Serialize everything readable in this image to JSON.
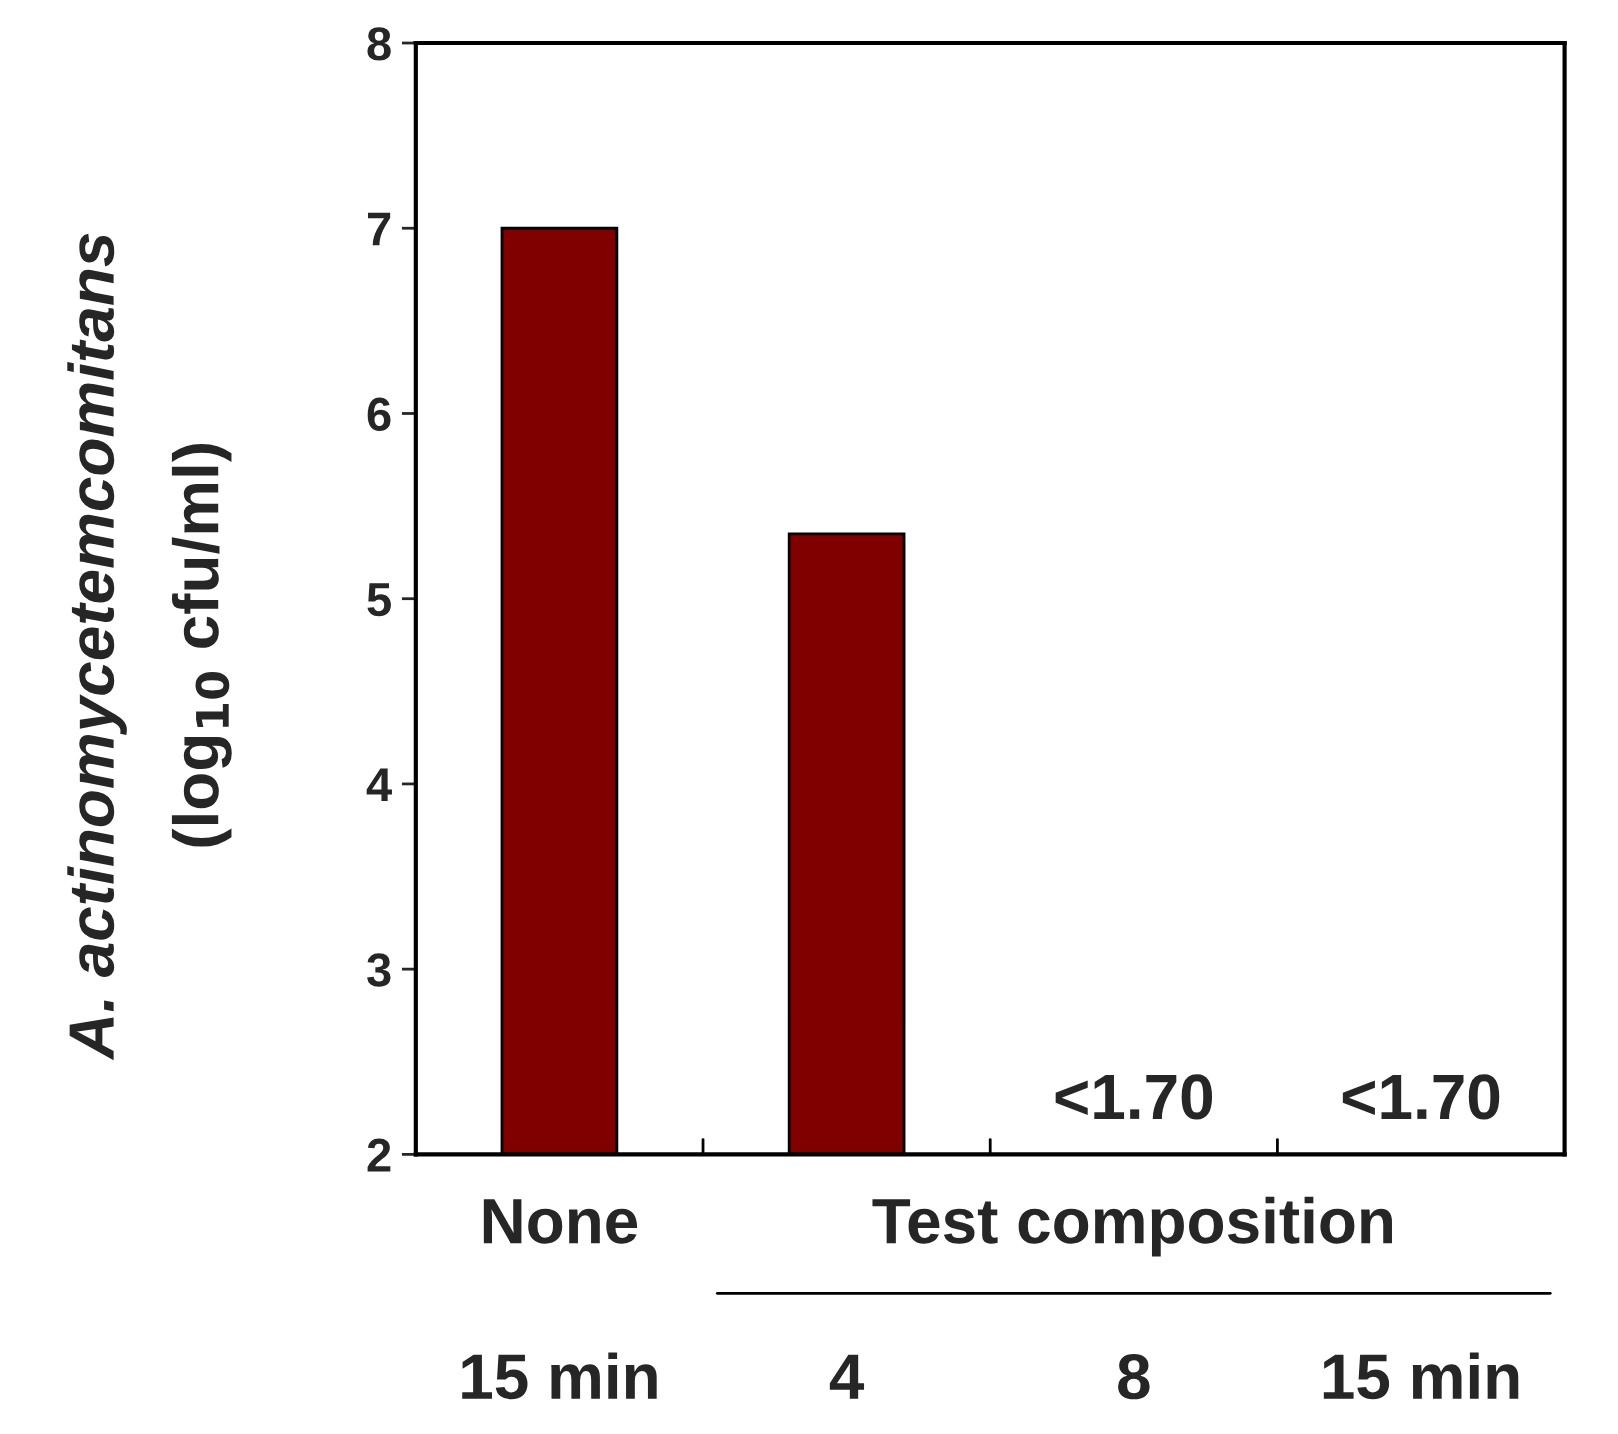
{
  "chart_data": {
    "type": "bar",
    "ylabel": "A. actinomycetemcomitans\n(log$_{10}$ cfu/ml)",
    "categories": [
      "15 min",
      "4",
      "8",
      "15 min"
    ],
    "values": [
      7.0,
      5.35,
      null,
      null
    ],
    "value_labels": [
      null,
      null,
      "<1.70",
      "<1.70"
    ],
    "color": "#800000",
    "ylim": [
      2,
      8
    ],
    "yticks": [
      2,
      3,
      4,
      5,
      6,
      7,
      8
    ],
    "annotations": [
      "None",
      "Test composition"
    ],
    "grid": false,
    "legend": false
  }
}
